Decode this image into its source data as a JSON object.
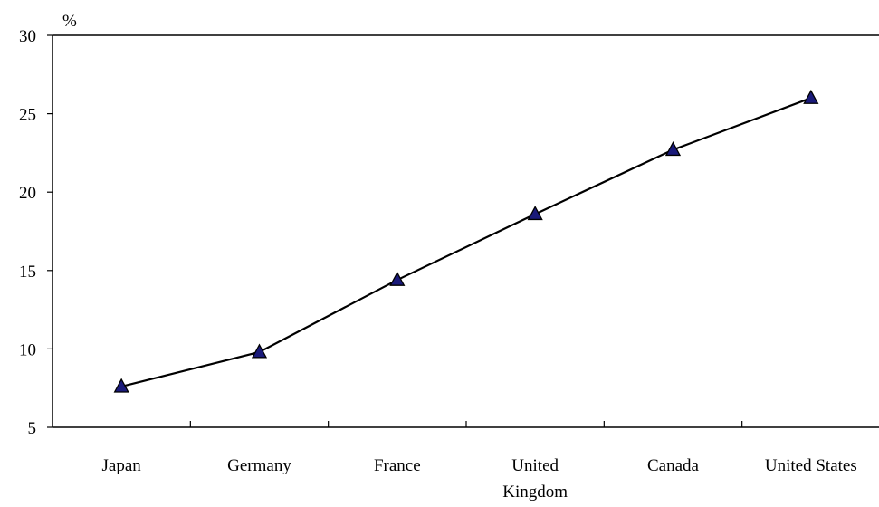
{
  "chart_data": {
    "type": "line",
    "categories": [
      [
        "Japan"
      ],
      [
        "Germany"
      ],
      [
        "France"
      ],
      [
        "United",
        "Kingdom"
      ],
      [
        "Canada"
      ],
      [
        "United States"
      ]
    ],
    "series": [
      {
        "values": [
          7.6,
          9.8,
          14.4,
          18.6,
          22.7,
          26.0
        ],
        "color": "#000000",
        "marker": "triangle",
        "marker_color": "#1a1a7a"
      }
    ],
    "y_unit": "%",
    "ylim": [
      5,
      30
    ],
    "yticks": [
      "5",
      "10",
      "15",
      "20",
      "25",
      "30"
    ],
    "grid": false,
    "legend": false
  }
}
